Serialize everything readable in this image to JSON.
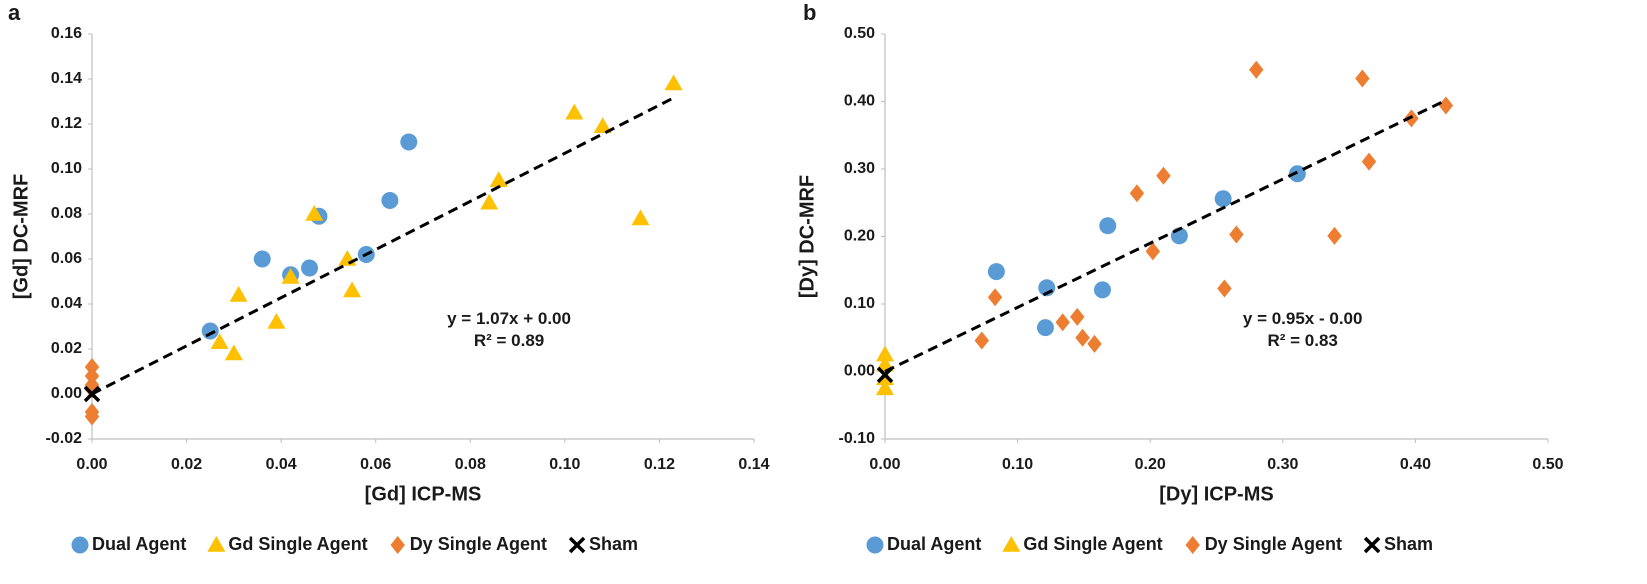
{
  "chart_data": [
    {
      "type": "scatter",
      "panel": "a",
      "x_label": "[Gd] ICP-MS",
      "y_label": "[Gd] DC-MRF",
      "xlim": [
        0,
        0.14
      ],
      "ylim": [
        -0.02,
        0.16
      ],
      "xticks": [
        {
          "value": 0,
          "label": "0.00"
        },
        {
          "value": 0.02,
          "label": "0.02"
        },
        {
          "value": 0.04,
          "label": "0.04"
        },
        {
          "value": 0.06,
          "label": "0.06"
        },
        {
          "value": 0.08,
          "label": "0.08"
        },
        {
          "value": 0.1,
          "label": "0.10"
        },
        {
          "value": 0.12,
          "label": "0.12"
        },
        {
          "value": 0.14,
          "label": "0.14"
        }
      ],
      "yticks": [
        {
          "value": -0.02,
          "label": "-0.02"
        },
        {
          "value": 0,
          "label": "0.00"
        },
        {
          "value": 0.02,
          "label": "0.02"
        },
        {
          "value": 0.04,
          "label": "0.04"
        },
        {
          "value": 0.06,
          "label": "0.06"
        },
        {
          "value": 0.08,
          "label": "0.08"
        },
        {
          "value": 0.1,
          "label": "0.10"
        },
        {
          "value": 0.12,
          "label": "0.12"
        },
        {
          "value": 0.14,
          "label": "0.14"
        },
        {
          "value": 0.16,
          "label": "0.16"
        }
      ],
      "series": [
        {
          "name": "Dual Agent",
          "marker": "circle",
          "color": "#5b9bd5",
          "x": [
            0.025,
            0.036,
            0.042,
            0.046,
            0.048,
            0.058,
            0.063,
            0.067
          ],
          "values": [
            0.028,
            0.06,
            0.053,
            0.056,
            0.079,
            0.062,
            0.086,
            0.112
          ]
        },
        {
          "name": "Gd Single Agent",
          "marker": "triangle",
          "color": "#ffc000",
          "x": [
            0.027,
            0.03,
            0.031,
            0.039,
            0.042,
            0.047,
            0.054,
            0.055,
            0.084,
            0.086,
            0.102,
            0.108,
            0.116,
            0.123
          ],
          "values": [
            0.023,
            0.018,
            0.044,
            0.032,
            0.052,
            0.08,
            0.06,
            0.046,
            0.085,
            0.095,
            0.125,
            0.119,
            0.078,
            0.138
          ]
        },
        {
          "name": "Dy Single Agent",
          "marker": "diamond",
          "color": "#ed7d31",
          "x": [
            0,
            0,
            0,
            0,
            0,
            0
          ],
          "values": [
            0.012,
            0.008,
            0.004,
            0.002,
            -0.008,
            -0.01
          ]
        },
        {
          "name": "Sham",
          "marker": "x",
          "color": "#000000",
          "x": [
            0
          ],
          "values": [
            0
          ]
        }
      ],
      "trendline": {
        "slope": 1.07,
        "intercept": 0,
        "xlim": [
          0,
          0.123
        ]
      },
      "annotations": [
        "y = 1.07x + 0.00",
        "R² = 0.89"
      ]
    },
    {
      "type": "scatter",
      "panel": "b",
      "x_label": "[Dy] ICP-MS",
      "y_label": "[Dy] DC-MRF",
      "xlim": [
        0,
        0.5
      ],
      "ylim": [
        -0.1,
        0.5
      ],
      "xticks": [
        {
          "value": 0,
          "label": "0.00"
        },
        {
          "value": 0.1,
          "label": "0.10"
        },
        {
          "value": 0.2,
          "label": "0.20"
        },
        {
          "value": 0.3,
          "label": "0.30"
        },
        {
          "value": 0.4,
          "label": "0.40"
        },
        {
          "value": 0.5,
          "label": "0.50"
        }
      ],
      "yticks": [
        {
          "value": -0.1,
          "label": "-0.10"
        },
        {
          "value": 0,
          "label": "0.00"
        },
        {
          "value": 0.1,
          "label": "0.10"
        },
        {
          "value": 0.2,
          "label": "0.20"
        },
        {
          "value": 0.3,
          "label": "0.30"
        },
        {
          "value": 0.4,
          "label": "0.40"
        },
        {
          "value": 0.5,
          "label": "0.50"
        }
      ],
      "series": [
        {
          "name": "Dual Agent",
          "marker": "circle",
          "color": "#5b9bd5",
          "x": [
            0.084,
            0.122,
            0.121,
            0.164,
            0.168,
            0.222,
            0.255,
            0.311
          ],
          "values": [
            0.148,
            0.124,
            0.065,
            0.121,
            0.216,
            0.201,
            0.256,
            0.293
          ]
        },
        {
          "name": "Gd Single Agent",
          "marker": "triangle",
          "color": "#ffc000",
          "x": [
            0,
            0,
            0,
            0
          ],
          "values": [
            0.025,
            0.01,
            -0.01,
            -0.025
          ]
        },
        {
          "name": "Dy Single Agent",
          "marker": "diamond",
          "color": "#ed7d31",
          "x": [
            0.073,
            0.083,
            0.134,
            0.145,
            0.149,
            0.158,
            0.19,
            0.202,
            0.21,
            0.265,
            0.256,
            0.28,
            0.339,
            0.36,
            0.365,
            0.397,
            0.423
          ],
          "values": [
            0.046,
            0.11,
            0.073,
            0.081,
            0.05,
            0.041,
            0.264,
            0.178,
            0.29,
            0.203,
            0.123,
            0.447,
            0.201,
            0.434,
            0.311,
            0.375,
            0.394
          ]
        },
        {
          "name": "Sham",
          "marker": "x",
          "color": "#000000",
          "x": [
            0
          ],
          "values": [
            -0.005
          ]
        }
      ],
      "trendline": {
        "slope": 0.95,
        "intercept": 0,
        "xlim": [
          0,
          0.423
        ]
      },
      "annotations": [
        "y = 0.95x - 0.00",
        "R² = 0.83"
      ]
    }
  ]
}
